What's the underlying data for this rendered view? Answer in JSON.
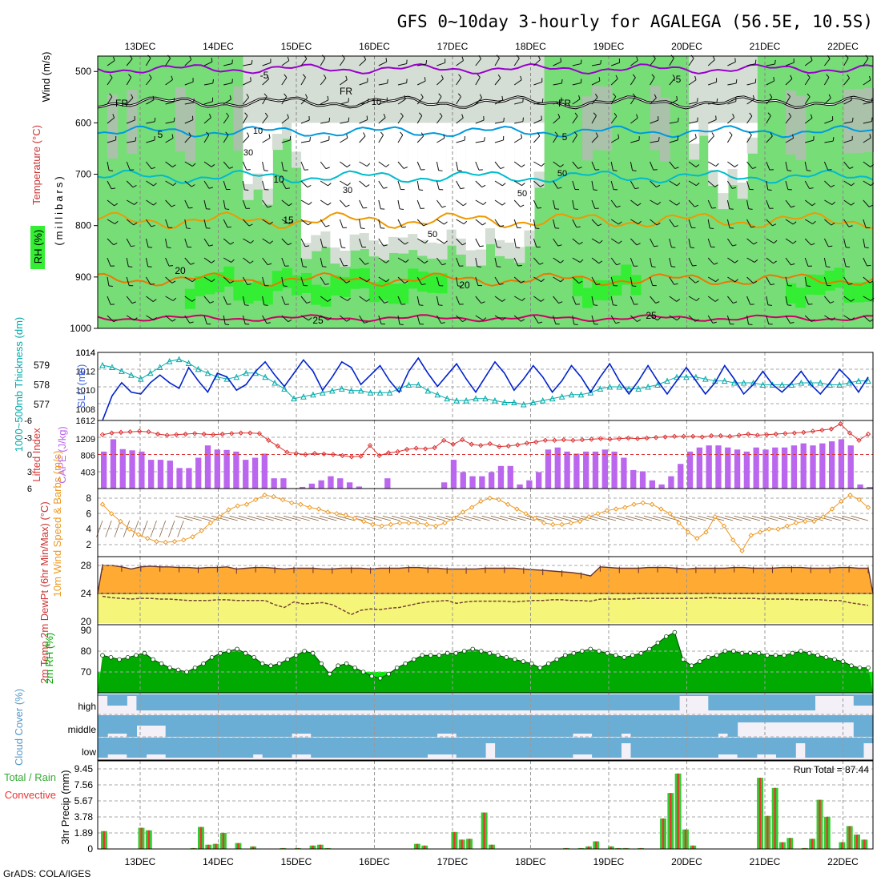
{
  "title": "GFS 0~10day 3-hourly for AGALEGA (56.5E, 10.5S)",
  "credit": "GrADS: COLA/IGES",
  "colors": {
    "rh_light": "#d4ded4",
    "rh_mid": "#a9c2a9",
    "rh_green": "#77dd77",
    "rh_bright": "#33ee33",
    "temp_minus5": "#9900cc",
    "temp_0": "#000000",
    "temp_5": "#0099dd",
    "temp_10": "#00bbcc",
    "temp_15": "#ee9900",
    "temp_20": "#ee7700",
    "temp_25": "#cc0066",
    "slp": "#0022cc",
    "thickness": "#00aaaa",
    "lifted": "#dd3333",
    "cape": "#bb66ee",
    "wind_speed": "#ee9922",
    "wind_barb": "#886644",
    "temp_fill": "#ffaa33",
    "dew_fill": "#f5f57a",
    "rh2m_dark": "#00aa00",
    "rh2m_light": "#00ee00",
    "cloud": "#6aaed6",
    "cloud_gap": "#e8e8e8",
    "rain_total": "#33cc33",
    "rain_conv": "#ee3333"
  },
  "chart_data": [
    {
      "type": "heatmap",
      "name": "upper-air",
      "title": "GFS 0~10day 3-hourly for AGALEGA (56.5E, 10.5S)",
      "x_labels": [
        "13DEC",
        "14DEC",
        "15DEC",
        "16DEC",
        "17DEC",
        "18DEC",
        "19DEC",
        "20DEC",
        "21DEC",
        "22DEC"
      ],
      "y_ticks": [
        500,
        600,
        700,
        800,
        900,
        1000
      ],
      "ylabel_wind": "Wind (m/s)",
      "ylabel_temp": "Temperature (°C)",
      "ylabel_rh": "RH (%)",
      "ylabel_pressure": "(millibars)",
      "isotherm_labels": [
        "-5",
        "-5",
        "FR",
        "FR",
        "FR",
        "5",
        "5",
        "10",
        "15",
        "20",
        "20",
        "25",
        "25"
      ],
      "rh_labels": [
        "10",
        "10",
        "30",
        "30",
        "50",
        "50",
        "50"
      ],
      "isotherms": [
        {
          "label": "-5",
          "color": "#9900cc",
          "base": 495,
          "amp": 6
        },
        {
          "label": "FR",
          "color": "#000000",
          "base": 560,
          "amp": 7
        },
        {
          "label": "5",
          "color": "#0099dd",
          "base": 617,
          "amp": 7
        },
        {
          "label": "10",
          "color": "#00bbcc",
          "base": 705,
          "amp": 8
        },
        {
          "label": "15",
          "color": "#ee9900",
          "base": 790,
          "amp": 10
        },
        {
          "label": "20",
          "color": "#ee7700",
          "base": 905,
          "amp": 8
        },
        {
          "label": "25",
          "color": "#cc0066",
          "base": 980,
          "amp": 4
        }
      ]
    },
    {
      "type": "line",
      "name": "slp-thickness",
      "ylabel_left": "1000~500mb Thickness (dm)",
      "ylabel_right": "SLP (mb)",
      "left_ticks": [
        579,
        578,
        577
      ],
      "right_ticks": [
        1014,
        1012,
        1010,
        1008
      ],
      "right_range_labels": [
        "1014",
        "1612"
      ],
      "series": [
        {
          "name": "SLP",
          "values": [
            1006.8,
            1009.4,
            1010.8,
            1009.8,
            1009.6,
            1010.8,
            1011.6,
            1010.8,
            1010.2,
            1012.4,
            1011.0,
            1009.8,
            1011.8,
            1011.4,
            1010.0,
            1010.6,
            1012.0,
            1013.0,
            1011.6,
            1010.4,
            1011.8,
            1013.2,
            1012.0,
            1010.0,
            1011.4,
            1013.0,
            1012.4,
            1010.6,
            1011.6,
            1012.6,
            1011.0,
            1009.8,
            1012.0,
            1013.4,
            1011.8,
            1010.4,
            1011.6,
            1012.8,
            1011.2,
            1009.8,
            1011.4,
            1013.0,
            1011.8,
            1010.0,
            1011.2,
            1012.6,
            1011.4,
            1009.8,
            1011.0,
            1012.6,
            1011.4,
            1009.8,
            1011.4,
            1012.8,
            1011.0,
            1009.6,
            1011.0,
            1012.6,
            1011.0,
            1009.6,
            1011.0,
            1012.4,
            1011.0,
            1009.6,
            1010.8,
            1012.6,
            1011.2,
            1009.6,
            1010.6,
            1012.0,
            1010.6,
            1009.8,
            1010.8,
            1012.0,
            1010.6,
            1009.6,
            1010.8,
            1012.2,
            1011.2,
            1009.8,
            1011.4
          ]
        },
        {
          "name": "Thickness",
          "values": [
            579.0,
            578.9,
            578.7,
            578.5,
            578.3,
            578.6,
            578.9,
            579.2,
            579.3,
            579.1,
            578.8,
            578.6,
            578.4,
            578.3,
            578.4,
            578.6,
            578.6,
            578.4,
            578.1,
            577.8,
            577.3,
            577.4,
            577.5,
            577.6,
            577.7,
            577.8,
            577.7,
            577.7,
            577.6,
            577.6,
            577.6,
            577.8,
            578.0,
            578.0,
            577.7,
            577.5,
            577.3,
            577.2,
            577.2,
            577.3,
            577.3,
            577.2,
            577.1,
            577.1,
            577.0,
            577.1,
            577.2,
            577.3,
            577.4,
            577.5,
            577.5,
            577.6,
            577.8,
            577.9,
            577.9,
            577.8,
            577.8,
            577.9,
            578.0,
            578.2,
            578.4,
            578.4,
            578.4,
            578.3,
            578.2,
            578.2,
            578.1,
            578.1,
            578.1,
            578.0,
            578.0,
            578.0,
            578.0,
            578.1,
            578.1,
            578.1,
            578.0,
            578.0,
            578.1,
            578.2,
            578.2
          ]
        }
      ]
    },
    {
      "type": "bar",
      "name": "cape-lifted-index",
      "ylabel_left": "Lifted Index",
      "ylabel_right": "CAPE (J/kg)",
      "left_ticks": [
        "-6",
        "-3",
        "0",
        "3",
        "6"
      ],
      "right_ticks": [
        "1209",
        "806",
        "403"
      ],
      "series": [
        {
          "name": "CAPE",
          "values": [
            900,
            1200,
            960,
            930,
            900,
            700,
            700,
            680,
            500,
            500,
            750,
            1050,
            950,
            940,
            900,
            700,
            750,
            850,
            250,
            250,
            0,
            40,
            120,
            200,
            300,
            250,
            150,
            50,
            0,
            0,
            250,
            0,
            0,
            0,
            0,
            0,
            150,
            700,
            400,
            300,
            300,
            400,
            550,
            550,
            100,
            200,
            400,
            950,
            1000,
            900,
            850,
            900,
            900,
            950,
            900,
            750,
            450,
            420,
            200,
            100,
            300,
            600,
            900,
            1000,
            1050,
            1050,
            1000,
            950,
            900,
            1000,
            950,
            1000,
            1000,
            1050,
            1100,
            1050,
            1100,
            1150,
            1200,
            1050,
            100,
            40
          ]
        },
        {
          "name": "Lifted Index",
          "values": [
            -3.5,
            -3.8,
            -3.9,
            -4.0,
            -4.1,
            -4.0,
            -3.6,
            -3.4,
            -3.5,
            -3.6,
            -3.7,
            -3.6,
            -3.5,
            -3.6,
            -3.7,
            -3.8,
            -3.8,
            -3.7,
            -2.5,
            -1.5,
            -0.4,
            -0.2,
            0.0,
            -0.2,
            -0.1,
            0.0,
            0.2,
            0.4,
            0.3,
            -1.6,
            0.2,
            -0.3,
            -0.5,
            -0.9,
            -1.1,
            -1.0,
            -1.2,
            -2.5,
            -1.8,
            -2.6,
            -1.8,
            -1.6,
            -1.9,
            -1.4,
            -1.5,
            -1.7,
            -2.0,
            -2.2,
            -2.5,
            -2.5,
            -2.6,
            -2.5,
            -2.6,
            -2.7,
            -2.8,
            -2.7,
            -2.8,
            -2.9,
            -2.8,
            -2.9,
            -3.0,
            -3.1,
            -3.2,
            -3.2,
            -3.2,
            -3.1,
            -3.3,
            -3.3,
            -3.2,
            -3.4,
            -3.6,
            -3.4,
            -3.5,
            -3.6,
            -3.7,
            -3.8,
            -3.9,
            -4.1,
            -4.3,
            -4.5,
            -5.4,
            -3.8,
            -2.5,
            -3.6
          ]
        }
      ]
    },
    {
      "type": "line",
      "name": "10m-wind",
      "ylabel": "10m Wind Speed & Barbs (m/s)",
      "y_ticks": [
        "8",
        "6",
        "4",
        "2"
      ],
      "series": [
        {
          "name": "Speed",
          "values": [
            7.2,
            6.0,
            5.0,
            4.0,
            3.3,
            2.8,
            2.4,
            2.3,
            2.4,
            2.6,
            3.0,
            3.8,
            4.8,
            5.6,
            6.5,
            7.0,
            7.2,
            7.8,
            8.4,
            8.2,
            7.8,
            7.4,
            7.2,
            6.8,
            6.6,
            6.2,
            6.0,
            5.8,
            5.4,
            5.0,
            4.6,
            4.4,
            4.6,
            4.8,
            4.8,
            4.8,
            4.6,
            4.4,
            4.8,
            5.4,
            6.2,
            6.8,
            7.6,
            8.0,
            7.8,
            7.2,
            6.6,
            6.0,
            5.4,
            4.8,
            4.6,
            4.6,
            4.8,
            5.0,
            5.6,
            6.0,
            6.4,
            6.6,
            6.8,
            7.2,
            7.4,
            7.2,
            6.6,
            6.0,
            4.8,
            3.6,
            2.8,
            3.6,
            5.6,
            4.4,
            2.6,
            1.2,
            3.2,
            3.6,
            4.0,
            4.0,
            4.4,
            4.8,
            5.0,
            5.0,
            5.6,
            6.6,
            7.6,
            8.4,
            7.8,
            6.8
          ]
        }
      ]
    },
    {
      "type": "area",
      "name": "2m-temperature",
      "ylabel": "2m Temp 2m DewPt (6hr Min/Max) (°C)",
      "y_ticks": [
        "28",
        "24",
        "20"
      ],
      "series": [
        {
          "name": "2m Temp",
          "values": [
            28.0,
            28.0,
            27.8,
            27.5,
            27.8,
            27.9,
            27.8,
            27.8,
            27.7,
            27.7,
            27.6,
            27.7,
            27.7,
            27.8,
            27.5,
            27.6,
            27.7,
            27.7,
            27.6,
            27.5,
            27.6,
            27.6,
            27.6,
            27.5,
            27.5,
            27.6,
            27.6,
            27.6,
            27.5,
            27.6,
            27.6,
            27.6,
            27.7,
            27.7,
            27.6,
            27.6,
            27.5,
            27.5,
            27.5,
            27.5,
            27.6,
            27.6,
            27.6,
            27.6,
            27.5,
            27.4,
            27.3,
            27.2,
            27.1,
            27.0,
            26.8,
            26.5,
            27.8,
            27.7,
            27.6,
            27.6,
            27.6,
            27.7,
            27.7,
            27.7,
            27.6,
            27.5,
            27.6,
            27.6,
            27.6,
            27.6,
            27.7,
            27.7,
            27.6,
            27.6,
            27.6,
            27.7,
            27.7,
            27.7,
            27.6,
            27.6,
            27.6,
            27.7,
            27.7,
            27.6,
            27.6
          ]
        },
        {
          "name": "2m DewPt",
          "values": [
            23.6,
            23.4,
            23.3,
            23.2,
            23.3,
            23.3,
            23.2,
            23.2,
            23.1,
            23.0,
            23.0,
            23.0,
            23.1,
            23.1,
            23.0,
            23.0,
            23.0,
            23.0,
            22.4,
            22.0,
            22.8,
            22.5,
            22.6,
            22.7,
            22.4,
            21.7,
            21.0,
            21.6,
            21.8,
            21.7,
            21.9,
            22.0,
            22.3,
            22.6,
            22.8,
            22.9,
            23.0,
            22.6,
            22.8,
            22.9,
            22.9,
            22.9,
            22.9,
            22.8,
            22.9,
            23.0,
            23.0,
            23.1,
            23.1,
            23.0,
            23.0,
            22.9,
            23.2,
            23.2,
            23.2,
            23.2,
            23.3,
            23.3,
            23.3,
            23.3,
            23.3,
            23.3,
            23.3,
            23.4,
            23.4,
            23.3,
            23.3,
            23.3,
            23.3,
            23.2,
            23.2,
            23.2,
            23.2,
            23.1,
            23.1,
            23.1,
            23.0,
            23.0,
            22.7,
            22.5,
            22.3
          ]
        }
      ]
    },
    {
      "type": "area",
      "name": "2m-rh",
      "ylabel": "2m RH (%)",
      "y_ticks": [
        "90",
        "80",
        "70"
      ],
      "series": [
        {
          "name": "2m RH",
          "values": [
            78,
            77,
            76,
            77,
            78,
            79,
            76,
            74,
            72,
            71,
            70,
            72,
            74,
            77,
            79,
            80,
            81,
            79,
            77,
            74,
            73,
            74,
            76,
            78,
            80,
            79,
            74,
            69,
            73,
            74,
            72,
            70,
            68,
            67,
            69,
            72,
            74,
            76,
            78,
            78,
            78,
            79,
            79,
            80,
            81,
            80,
            79,
            78,
            77,
            76,
            75,
            74,
            72,
            74,
            76,
            78,
            79,
            80,
            81,
            80,
            79,
            78,
            77,
            78,
            79,
            81,
            84,
            87,
            89,
            76,
            73,
            75,
            77,
            78,
            80,
            80,
            79,
            79,
            79,
            78,
            78,
            78,
            79,
            80,
            79,
            78,
            77,
            76,
            75,
            73,
            72,
            72
          ]
        }
      ]
    },
    {
      "type": "heatmap",
      "name": "cloud-cover",
      "ylabel": "Cloud Cover (%)",
      "levels": [
        "high",
        "middle",
        "low"
      ]
    },
    {
      "type": "bar",
      "name": "precipitation",
      "ylabel": "3hr Precip (mm)",
      "ylabel_side": "Total / Rain",
      "ylabel_side2": "Convective",
      "run_total": "Run Total = 87.44",
      "y_ticks": [
        "9.45",
        "7.56",
        "5.67",
        "3.78",
        "1.89",
        "0"
      ],
      "x_labels": [
        "13DEC",
        "14DEC",
        "15DEC",
        "16DEC",
        "17DEC",
        "18DEC",
        "19DEC",
        "20DEC",
        "21DEC",
        "22DEC"
      ],
      "series": [
        {
          "name": "Total",
          "values": [
            2.1,
            0,
            0,
            0,
            0,
            2.5,
            2.2,
            0,
            0,
            0,
            0,
            0,
            0.1,
            2.6,
            0.5,
            0.6,
            1.9,
            0,
            0.7,
            0,
            0.3,
            0,
            0,
            0,
            0.1,
            0,
            0.1,
            0,
            0.4,
            0.5,
            0.1,
            0,
            0,
            0,
            0,
            0,
            0,
            0,
            0,
            0,
            0,
            0,
            0.6,
            0.4,
            0,
            0,
            0,
            2.0,
            1.1,
            1.2,
            0,
            4.3,
            0.5,
            0,
            0,
            0,
            0,
            0,
            0,
            0,
            0,
            0,
            0.1,
            0,
            0.1,
            0.3,
            0.9,
            0,
            0.3,
            0.1,
            0.1,
            0,
            0.1,
            0,
            0,
            3.6,
            6.6,
            8.9,
            2.3,
            0.4,
            0,
            0,
            0,
            0,
            0,
            0,
            0,
            0,
            8.4,
            3.9,
            7.2,
            0.8,
            1.3,
            0,
            0.1,
            1.2,
            5.8,
            3.8,
            0,
            0.8,
            2.7,
            1.7,
            1.1,
            0
          ]
        }
      ]
    }
  ]
}
